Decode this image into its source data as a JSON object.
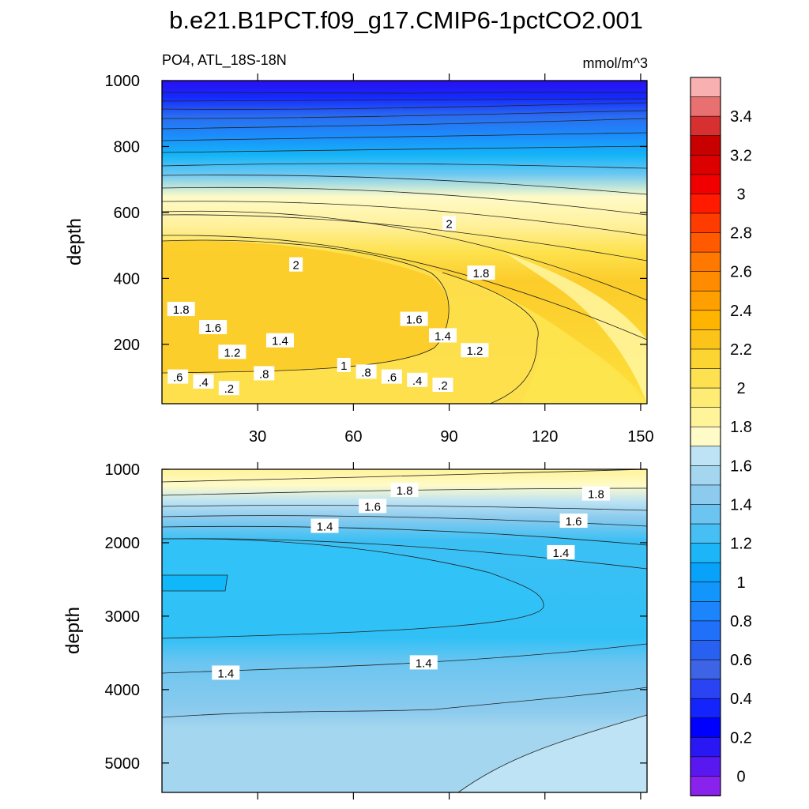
{
  "title": "b.e21.B1PCT.f09_g17.CMIP6-1pctCO2.001",
  "chart_data": {
    "type": "contour",
    "variable_label": "PO4, ATL_18S-18N",
    "units": "mmol/m^3",
    "upper_panel": {
      "ylabel": "depth",
      "ylim": [
        1000,
        20
      ],
      "yticks": [
        200,
        400,
        600,
        800,
        1000
      ],
      "xlim": [
        0,
        152
      ],
      "xticks": [
        30,
        60,
        90,
        120,
        150
      ],
      "contour_labels": [
        {
          "text": ".2",
          "x": 21,
          "y": 65
        },
        {
          "text": ".4",
          "x": 13,
          "y": 85
        },
        {
          "text": ".6",
          "x": 5,
          "y": 100
        },
        {
          "text": ".8",
          "x": 32,
          "y": 110
        },
        {
          "text": "1",
          "x": 57,
          "y": 135
        },
        {
          "text": ".8",
          "x": 64,
          "y": 115
        },
        {
          "text": ".6",
          "x": 72,
          "y": 100
        },
        {
          "text": ".4",
          "x": 80,
          "y": 90
        },
        {
          "text": ".2",
          "x": 88,
          "y": 75
        },
        {
          "text": "1.2",
          "x": 22,
          "y": 175
        },
        {
          "text": "1.4",
          "x": 37,
          "y": 210
        },
        {
          "text": "1.2",
          "x": 98,
          "y": 180
        },
        {
          "text": "1.4",
          "x": 88,
          "y": 225
        },
        {
          "text": "1.6",
          "x": 16,
          "y": 250
        },
        {
          "text": "1.6",
          "x": 79,
          "y": 275
        },
        {
          "text": "1.8",
          "x": 6,
          "y": 305
        },
        {
          "text": "1.8",
          "x": 100,
          "y": 415
        },
        {
          "text": "2",
          "x": 42,
          "y": 440
        },
        {
          "text": "2",
          "x": 90,
          "y": 565
        }
      ]
    },
    "lower_panel": {
      "ylabel": "depth",
      "ylim": [
        1000,
        5400
      ],
      "yticks": [
        1000,
        2000,
        3000,
        4000,
        5000
      ],
      "xlim": [
        0,
        152
      ],
      "xticks": [
        30,
        60,
        90,
        120,
        150
      ],
      "contour_labels": [
        {
          "text": "1.8",
          "x": 76,
          "y": 1290
        },
        {
          "text": "1.8",
          "x": 136,
          "y": 1340
        },
        {
          "text": "1.6",
          "x": 66,
          "y": 1510
        },
        {
          "text": "1.6",
          "x": 129,
          "y": 1710
        },
        {
          "text": "1.4",
          "x": 51,
          "y": 1780
        },
        {
          "text": "1.4",
          "x": 125,
          "y": 2140
        },
        {
          "text": "1.4",
          "x": 20,
          "y": 3780
        },
        {
          "text": "1.4",
          "x": 82,
          "y": 3640
        }
      ]
    },
    "colorbar": {
      "labels": [
        "3.4",
        "3.2",
        "3",
        "2.8",
        "2.6",
        "2.4",
        "2.2",
        "2",
        "1.8",
        "1.6",
        "1.4",
        "1.2",
        "1",
        "0.8",
        "0.6",
        "0.4",
        "0.2",
        "0"
      ],
      "colors": [
        "#f8b0b0",
        "#e87070",
        "#d83030",
        "#c80000",
        "#dc0000",
        "#f00000",
        "#ff1a00",
        "#ff3c00",
        "#ff5a00",
        "#ff7800",
        "#ff8c00",
        "#ffa000",
        "#ffb400",
        "#fcc418",
        "#fdd532",
        "#fee150",
        "#ffec74",
        "#fff49a",
        "#fffbc8",
        "#bde3f4",
        "#a4d6ef",
        "#8ccbee",
        "#6cc5f0",
        "#46bff4",
        "#1cb6f8",
        "#08a2fa",
        "#1296fb",
        "#1c85fb",
        "#2070fa",
        "#2860f2",
        "#3c64e4",
        "#2a44f4",
        "#1424fc",
        "#0000ff",
        "#2a18f4",
        "#5a18f0",
        "#8a22ee"
      ]
    }
  }
}
